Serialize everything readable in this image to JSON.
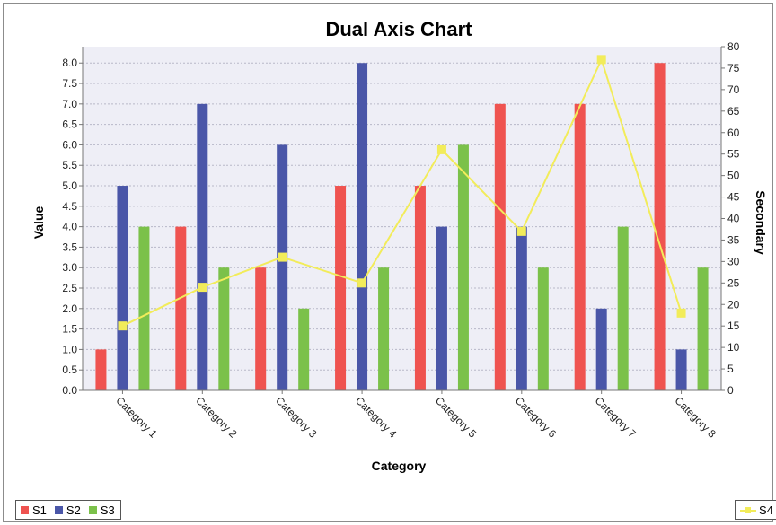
{
  "chart_data": {
    "type": "bar",
    "title": "Dual Axis Chart",
    "xlabel": "Category",
    "ylabel": "Value",
    "y2label": "Secondary",
    "categories": [
      "Category 1",
      "Category 2",
      "Category 3",
      "Category 4",
      "Category 5",
      "Category 6",
      "Category 7",
      "Category 8"
    ],
    "ylim": [
      0,
      8.4
    ],
    "yticks": [
      "0.0",
      "0.5",
      "1.0",
      "1.5",
      "2.0",
      "2.5",
      "3.0",
      "3.5",
      "4.0",
      "4.5",
      "5.0",
      "5.5",
      "6.0",
      "6.5",
      "7.0",
      "7.5",
      "8.0"
    ],
    "y2lim": [
      0,
      80
    ],
    "y2ticks": [
      "0",
      "5",
      "10",
      "15",
      "20",
      "25",
      "30",
      "35",
      "40",
      "45",
      "50",
      "55",
      "60",
      "65",
      "70",
      "75",
      "80"
    ],
    "grid": true,
    "plot_background": "#eeeef6",
    "series": [
      {
        "name": "S1",
        "type": "bar",
        "axis": "primary",
        "color": "#ef5350",
        "values": [
          1,
          4,
          3,
          5,
          5,
          7,
          7,
          8
        ]
      },
      {
        "name": "S2",
        "type": "bar",
        "axis": "primary",
        "color": "#4a56a8",
        "values": [
          5,
          7,
          6,
          8,
          4,
          4,
          2,
          1
        ]
      },
      {
        "name": "S3",
        "type": "bar",
        "axis": "primary",
        "color": "#7bc14a",
        "values": [
          4,
          3,
          2,
          3,
          6,
          3,
          4,
          3
        ]
      },
      {
        "name": "S4",
        "type": "line",
        "axis": "secondary",
        "color": "#f2ec5a",
        "values": [
          15,
          24,
          31,
          25,
          56,
          37,
          77,
          18
        ]
      }
    ],
    "legend": {
      "placement": "bottom",
      "left_items": [
        "S1",
        "S2",
        "S3"
      ],
      "right_items": [
        "S4"
      ]
    }
  }
}
